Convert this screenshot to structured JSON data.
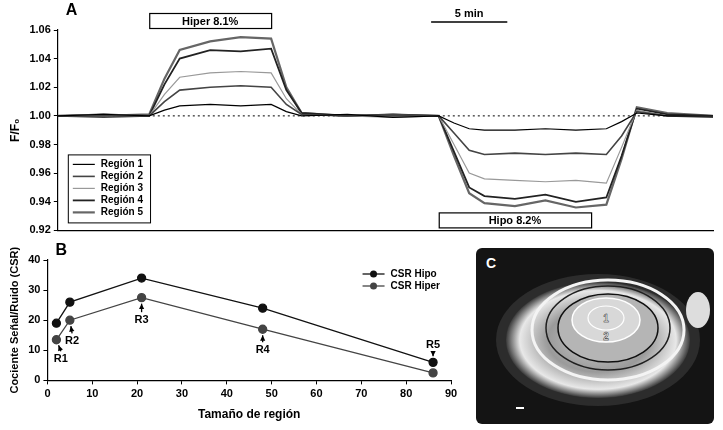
{
  "chart_data": [
    {
      "type": "line",
      "panel": "A",
      "ylabel": "F/F₀",
      "x": [
        0,
        3,
        6,
        7,
        8,
        10,
        12,
        14,
        15,
        16,
        19,
        22,
        25,
        26,
        27,
        28,
        30,
        32,
        34,
        36,
        37,
        38,
        40,
        43
      ],
      "series": [
        {
          "name": "Región 1",
          "color": "#000000",
          "values": [
            1.0,
            1.001,
            1.0,
            1.004,
            1.007,
            1.008,
            1.007,
            1.008,
            1.003,
            1.0,
            1.001,
            0.999,
            1.0,
            0.995,
            0.991,
            0.99,
            0.99,
            0.991,
            0.99,
            0.991,
            0.996,
            1.002,
            1.0,
            1.0
          ]
        },
        {
          "name": "Región 2",
          "color": "#444444",
          "values": [
            1.0,
            0.999,
            1.0,
            1.01,
            1.018,
            1.02,
            1.021,
            1.02,
            1.008,
            1.001,
            1.0,
            1.001,
            1.0,
            0.988,
            0.976,
            0.973,
            0.974,
            0.973,
            0.974,
            0.973,
            0.986,
            1.003,
            1.0,
            0.999
          ]
        },
        {
          "name": "Región 3",
          "color": "#999999",
          "values": [
            1.0,
            1.001,
            1.0,
            1.015,
            1.027,
            1.03,
            1.031,
            1.03,
            1.012,
            1.001,
            1.0,
            0.999,
            1.0,
            0.98,
            0.96,
            0.956,
            0.955,
            0.954,
            0.955,
            0.953,
            0.978,
            1.004,
            1.0,
            1.0
          ]
        },
        {
          "name": "Región 4",
          "color": "#222222",
          "values": [
            1.0,
            1.001,
            1.0,
            1.022,
            1.04,
            1.046,
            1.045,
            1.047,
            1.018,
            1.002,
            1.0,
            1.001,
            1.0,
            0.975,
            0.95,
            0.944,
            0.942,
            0.945,
            0.94,
            0.943,
            0.972,
            1.005,
            1.001,
            1.0
          ]
        },
        {
          "name": "Región 5",
          "color": "#666666",
          "values": [
            1.0,
            1.0,
            1.001,
            1.026,
            1.046,
            1.052,
            1.055,
            1.054,
            1.02,
            1.002,
            1.0,
            1.0,
            1.0,
            0.972,
            0.946,
            0.939,
            0.937,
            0.941,
            0.936,
            0.938,
            0.97,
            1.006,
            1.002,
            1.0
          ]
        }
      ],
      "xlim": [
        0,
        43
      ],
      "ylim": [
        0.92,
        1.06
      ],
      "yticks": [
        0.92,
        0.94,
        0.96,
        0.98,
        {
          "value": 1,
          "label": "1.00"
        },
        1.02,
        1.04,
        1.06
      ],
      "tick_labels": "y",
      "grid": false,
      "legend": "lower left",
      "baseline": 1,
      "annotations": [
        {
          "text": "Hiper 8.1%",
          "x": [
            6,
            14
          ]
        },
        {
          "text": "Hipo 8.2%",
          "x": [
            25,
            35
          ]
        }
      ],
      "scale_bar": {
        "text": "5 min",
        "x": [
          24.5,
          29.5
        ]
      }
    },
    {
      "type": "line",
      "panel": "B",
      "xlabel": "Tamaño de región",
      "ylabel": "Cociente Señal/Ruido (CSR)",
      "x": [
        2,
        5,
        21,
        48,
        86
      ],
      "series": [
        {
          "name": "CSR Hipo",
          "color": "#111111",
          "marker": "circle",
          "values": [
            19,
            26,
            34,
            24,
            6
          ]
        },
        {
          "name": "CSR Hiper",
          "color": "#444444",
          "marker": "circle",
          "values": [
            13.5,
            20,
            27.5,
            17,
            2.5
          ]
        }
      ],
      "xlim": [
        0,
        90
      ],
      "xticks": [
        0,
        10,
        20,
        30,
        40,
        50,
        60,
        70,
        80,
        90
      ],
      "ylim": [
        0,
        40
      ],
      "yticks": [
        0,
        10,
        20,
        30,
        40
      ],
      "grid": false,
      "legend": "upper right",
      "annotations": [
        {
          "text": "R1",
          "x": 3,
          "y": 7
        },
        {
          "text": "R2",
          "x": 5.5,
          "y": 13
        },
        {
          "text": "R3",
          "x": 21,
          "y": 20
        },
        {
          "text": "R4",
          "x": 48,
          "y": 10
        },
        {
          "text": "R5",
          "x": 86,
          "y": 12
        }
      ]
    }
  ],
  "image_panel": {
    "letter": "C",
    "region_labels": [
      "1",
      "2"
    ]
  }
}
